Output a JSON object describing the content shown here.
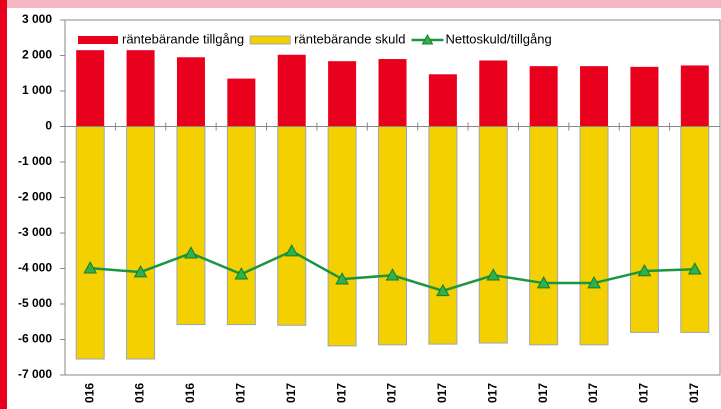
{
  "chart_data": {
    "type": "bar",
    "categories": [
      "016",
      "016",
      "016",
      "017",
      "017",
      "017",
      "017",
      "017",
      "017",
      "017",
      "017",
      "017",
      "017"
    ],
    "series": [
      {
        "name": "räntebärande tillgång",
        "type": "bar",
        "color": "#e8001c",
        "values": [
          2150,
          2150,
          1950,
          1350,
          2020,
          1840,
          1900,
          1470,
          1860,
          1700,
          1700,
          1680,
          1720
        ]
      },
      {
        "name": "räntebärande skuld",
        "type": "bar",
        "color": "#f5d000",
        "values": [
          -6550,
          -6550,
          -5580,
          -5580,
          -5600,
          -6180,
          -6150,
          -6130,
          -6100,
          -6150,
          -6150,
          -5800,
          -5800
        ]
      },
      {
        "name": "Nettoskuld/tillgång",
        "type": "line",
        "color": "#1a9641",
        "values": [
          -3990,
          -4100,
          -3570,
          -4160,
          -3510,
          -4300,
          -4190,
          -4630,
          -4190,
          -4410,
          -4410,
          -4070,
          -4020
        ]
      }
    ],
    "ylim": [
      -7000,
      3000
    ],
    "yticks": [
      {
        "value": 3000,
        "label": "3 000"
      },
      {
        "value": 2000,
        "label": "2 000"
      },
      {
        "value": 1000,
        "label": "1 000"
      },
      0,
      {
        "value": -1000,
        "label": "-1 000"
      },
      {
        "value": -2000,
        "label": "-2 000"
      },
      {
        "value": -3000,
        "label": "-3 000"
      },
      {
        "value": -4000,
        "label": "-4 000"
      },
      {
        "value": -5000,
        "label": "-5 000"
      },
      {
        "value": -6000,
        "label": "-6 000"
      },
      {
        "value": -7000,
        "label": "-7 000"
      }
    ],
    "grid": false,
    "legend": "upper left"
  }
}
